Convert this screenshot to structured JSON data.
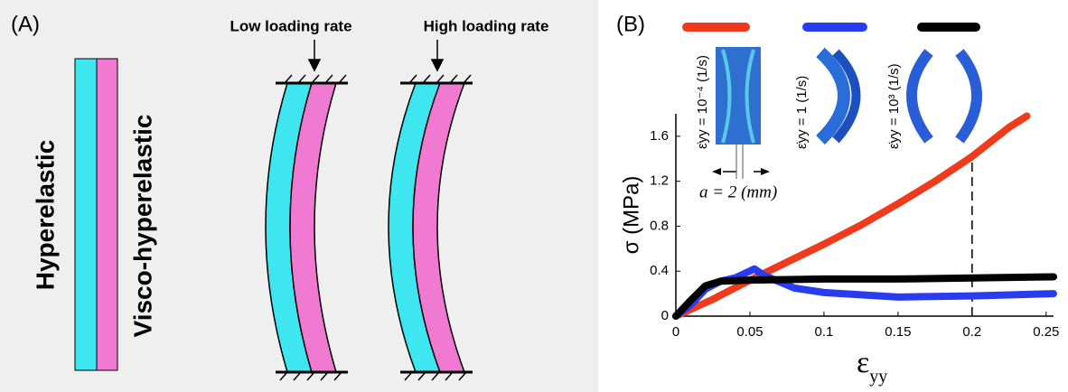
{
  "panel_a": {
    "label": "(A)",
    "straight_left": "Hyperelastic",
    "straight_right": "Visco-hyperelastic",
    "low_rate": "Low loading rate",
    "high_rate": "High loading rate"
  },
  "chart_data": {
    "type": "line",
    "panel_label": "(B)",
    "y_label": "σ (MPa)",
    "x_label": {
      "symbol": "ε",
      "subscript": "yy"
    },
    "annotation": "a = 2 (mm)",
    "reference_x": 0.2,
    "xlim": [
      0,
      0.255
    ],
    "ylim": [
      0,
      1.8
    ],
    "xticks": [
      0,
      0.05,
      0.1,
      0.15,
      0.2,
      0.25
    ],
    "yticks": [
      0,
      0.4,
      0.8,
      1.2,
      1.6
    ],
    "series": [
      {
        "name": "ε̇yy = 10⁻⁴ (1/s)",
        "color": "#f03a1c",
        "x": [
          0,
          0.025,
          0.05,
          0.075,
          0.1,
          0.125,
          0.15,
          0.175,
          0.2,
          0.225,
          0.237
        ],
        "values": [
          0,
          0.15,
          0.32,
          0.48,
          0.64,
          0.81,
          1.0,
          1.2,
          1.42,
          1.68,
          1.78
        ]
      },
      {
        "name": "ε̇yy = 1 (1/s)",
        "color": "#2a3cf0",
        "x": [
          0,
          0.01,
          0.02,
          0.03,
          0.04,
          0.053,
          0.06,
          0.08,
          0.1,
          0.15,
          0.2,
          0.255
        ],
        "values": [
          0,
          0.1,
          0.24,
          0.31,
          0.34,
          0.42,
          0.36,
          0.25,
          0.21,
          0.17,
          0.18,
          0.2
        ]
      },
      {
        "name": "ε̇yy = 10³ (1/s)",
        "color": "#000000",
        "x": [
          0,
          0.01,
          0.02,
          0.03,
          0.05,
          0.1,
          0.15,
          0.2,
          0.255
        ],
        "values": [
          0,
          0.14,
          0.27,
          0.31,
          0.32,
          0.33,
          0.33,
          0.34,
          0.35
        ]
      }
    ]
  }
}
